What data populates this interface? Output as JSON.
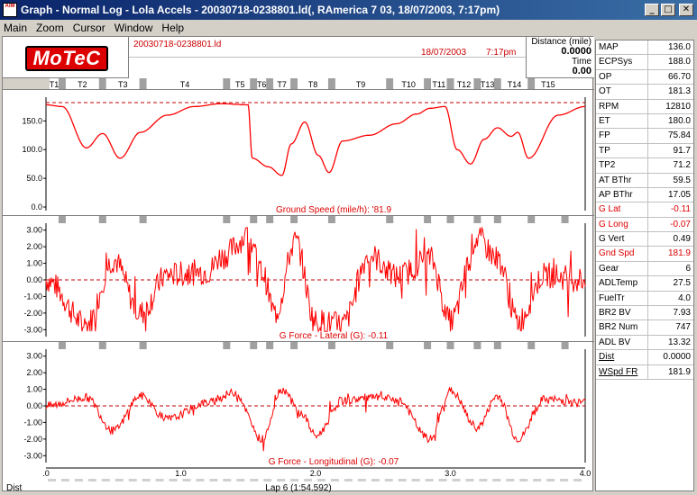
{
  "window": {
    "title": "Graph - Normal Log - Lola Accels - 20030718-0238801.ld(, RAmerica 7 03, 18/07/2003,  7:17pm)",
    "icon_text": "AiM",
    "buttons": [
      "minimize-icon",
      "maximize-icon",
      "close-icon"
    ]
  },
  "menu": [
    {
      "label": "Main"
    },
    {
      "label": "Zoom"
    },
    {
      "label": "Cursor"
    },
    {
      "label": "Window"
    },
    {
      "label": "Help"
    }
  ],
  "header": {
    "logo": "MoTeC",
    "filename": "20030718-0238801.ld",
    "date": "18/07/2003",
    "time": "7:17pm",
    "distance_label": "Distance (mile)",
    "distance_value": "0.0000",
    "time_label": "Time",
    "time_value": "0.00"
  },
  "sectors": [
    "T1",
    "T2",
    "T3",
    "T4",
    "T5",
    "T6",
    "T7",
    "T8",
    "T9",
    "T10",
    "T11",
    "T12",
    "T13",
    "T14",
    "T15"
  ],
  "plots": [
    {
      "label": "Ground Speed (mile/h): '81.9",
      "ticks": [
        "150.0",
        "100.0",
        "50.0",
        "0.0"
      ]
    },
    {
      "label": "G Force - Lateral (G): -0.11",
      "ticks": [
        "3.00",
        "2.00",
        "1.00",
        "0.00",
        "-1.00",
        "-2.00",
        "-3.00"
      ]
    },
    {
      "label": "G Force - Longitudinal (G): -0.07",
      "ticks": [
        "3.00",
        "2.00",
        "1.00",
        "0.00",
        "-1.00",
        "-2.00",
        "-3.00"
      ]
    }
  ],
  "xaxis": {
    "ticks": [
      ".0",
      "1.0",
      "2.0",
      "3.0",
      "4.0"
    ],
    "left_label": "Dist",
    "lap_label": "Lap 6 (1:54.592)"
  },
  "colors": {
    "trace": "#ff0000",
    "accent": "#0a246a",
    "dashed": "#c00000"
  },
  "chart_data": [
    {
      "type": "line",
      "title": "Ground Speed (mile/h): '81.9",
      "xlabel": "Dist",
      "ylim": [
        0,
        185
      ],
      "x": [
        0,
        0.12,
        0.3,
        0.42,
        0.55,
        0.7,
        0.9,
        1.1,
        1.3,
        1.5,
        1.53,
        1.65,
        1.75,
        1.82,
        1.92,
        2.02,
        2.1,
        2.2,
        2.4,
        2.6,
        2.75,
        2.85,
        2.96,
        3.05,
        3.15,
        3.25,
        3.35,
        3.45,
        3.5,
        3.58,
        3.8,
        4.0
      ],
      "series": [
        {
          "values": [
            178,
            175,
            103,
            128,
            85,
            130,
            160,
            175,
            180,
            178,
            85,
            70,
            55,
            110,
            148,
            90,
            60,
            115,
            125,
            145,
            162,
            172,
            175,
            100,
            75,
            118,
            138,
            123,
            130,
            85,
            160,
            175
          ]
        }
      ],
      "reference": 181.9
    },
    {
      "type": "line",
      "title": "G Force - Lateral (G): -0.11",
      "xlabel": "Dist",
      "ylim": [
        -3.2,
        3.2
      ],
      "x": [
        0,
        0.3,
        0.5,
        0.7,
        0.9,
        1.2,
        1.3,
        1.5,
        1.6,
        1.7,
        1.85,
        2.0,
        2.2,
        2.4,
        2.6,
        2.85,
        3.0,
        3.2,
        3.35,
        3.5,
        3.7,
        4.0
      ],
      "series": [
        {
          "values": [
            0,
            -2.7,
            1.2,
            -2.0,
            0.3,
            0.5,
            1.4,
            2.6,
            0.5,
            -2.0,
            2.3,
            -2.5,
            -2.7,
            1.5,
            0.2,
            1.3,
            -2.5,
            2.5,
            1.3,
            -2.5,
            0.3,
            0
          ]
        }
      ],
      "reference": 0
    },
    {
      "type": "line",
      "title": "G Force - Longitudinal (G): -0.07",
      "xlabel": "Dist",
      "ylim": [
        -3.2,
        3.2
      ],
      "x": [
        0,
        0.3,
        0.5,
        0.7,
        0.9,
        1.2,
        1.4,
        1.6,
        1.75,
        1.9,
        2.0,
        2.2,
        2.4,
        2.6,
        2.85,
        3.0,
        3.2,
        3.35,
        3.5,
        3.7,
        4.0
      ],
      "series": [
        {
          "values": [
            0,
            0.5,
            -1.5,
            0.6,
            -0.8,
            0.2,
            0.8,
            -2.0,
            1.0,
            -0.5,
            -1.8,
            0.3,
            0.5,
            0.4,
            -2.0,
            0.9,
            -1.3,
            0.6,
            -2.0,
            0.4,
            0.2
          ]
        }
      ],
      "reference": 0
    }
  ],
  "channels": [
    {
      "name": "MAP",
      "value": "136.0",
      "red": false
    },
    {
      "name": "ECPSys",
      "value": "188.0",
      "red": false
    },
    {
      "name": "OP",
      "value": "66.70",
      "red": false
    },
    {
      "name": "OT",
      "value": "181.3",
      "red": false
    },
    {
      "name": "RPM",
      "value": "12810",
      "red": false
    },
    {
      "name": "ET",
      "value": "180.0",
      "red": false
    },
    {
      "name": "FP",
      "value": "75.84",
      "red": false
    },
    {
      "name": "TP",
      "value": "91.7",
      "red": false
    },
    {
      "name": "TP2",
      "value": "71.2",
      "red": false
    },
    {
      "name": "AT BThr",
      "value": "59.5",
      "red": false
    },
    {
      "name": "AP BThr",
      "value": "17.05",
      "red": false
    },
    {
      "name": "G Lat",
      "value": "-0.11",
      "red": true
    },
    {
      "name": "G Long",
      "value": "-0.07",
      "red": true
    },
    {
      "name": "G Vert",
      "value": "0.49",
      "red": false
    },
    {
      "name": "Gnd Spd",
      "value": "181.9",
      "red": true
    },
    {
      "name": "Gear",
      "value": "6",
      "red": false
    },
    {
      "name": "ADLTemp",
      "value": "27.5",
      "red": false
    },
    {
      "name": "FuelTr",
      "value": "4.0",
      "red": false
    },
    {
      "name": "BR2 BV",
      "value": "7.93",
      "red": false
    },
    {
      "name": "BR2 Num",
      "value": "747",
      "red": false
    },
    {
      "name": "ADL BV",
      "value": "13.32",
      "red": false
    },
    {
      "name": "Dist",
      "value": "0.0000",
      "red": false,
      "underline": true
    },
    {
      "name": "WSpd FR",
      "value": "181.9",
      "red": false,
      "underline": true
    }
  ]
}
